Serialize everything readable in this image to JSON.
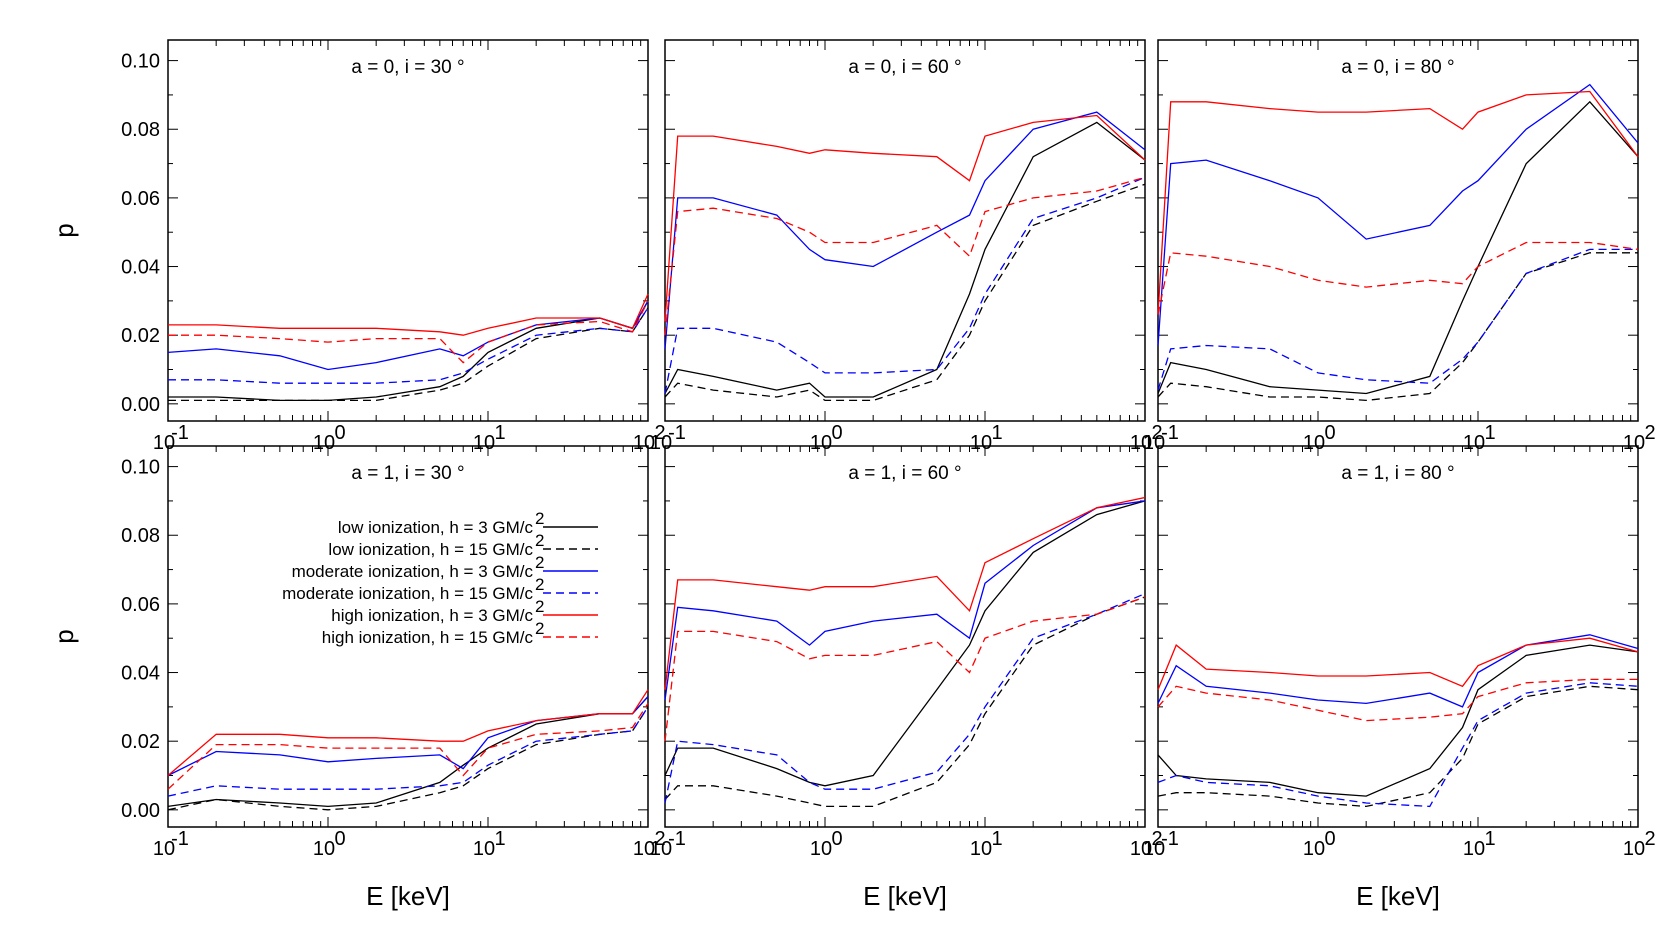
{
  "figure": {
    "ylabel": "p",
    "xlabel": "E [keV]"
  },
  "legend": {
    "entries": [
      {
        "label": "low ionization, h = 3 GM/c",
        "sup": "2",
        "color": "#000000",
        "dash": "solid"
      },
      {
        "label": "low ionization, h = 15 GM/c",
        "sup": "2",
        "color": "#000000",
        "dash": "dashed"
      },
      {
        "label": "moderate ionization, h = 3 GM/c",
        "sup": "2",
        "color": "#0000ff",
        "dash": "solid"
      },
      {
        "label": "moderate ionization, h = 15 GM/c",
        "sup": "2",
        "color": "#0000ff",
        "dash": "dashed"
      },
      {
        "label": "high ionization, h = 3 GM/c",
        "sup": "2",
        "color": "#ff0000",
        "dash": "solid"
      },
      {
        "label": "high ionization, h = 15 GM/c",
        "sup": "2",
        "color": "#ff0000",
        "dash": "dashed"
      }
    ]
  },
  "chart_data": [
    {
      "type": "line",
      "title": "a = 0, i = 30 °",
      "xscale": "log",
      "xlim": [
        0.1,
        100
      ],
      "ylim": [
        0,
        0.1
      ],
      "x": [
        0.1,
        0.2,
        0.5,
        1,
        2,
        5,
        7,
        10,
        20,
        50,
        80,
        100
      ],
      "series": [
        {
          "name": "low ionization, h = 3 GM/c2",
          "values": [
            0.002,
            0.002,
            0.001,
            0.001,
            0.002,
            0.005,
            0.008,
            0.015,
            0.022,
            0.025,
            0.022,
            0.03
          ]
        },
        {
          "name": "low ionization, h = 15 GM/c2",
          "values": [
            0.001,
            0.001,
            0.001,
            0.001,
            0.001,
            0.004,
            0.006,
            0.011,
            0.019,
            0.022,
            0.021,
            0.028
          ]
        },
        {
          "name": "moderate ionization, h = 3 GM/c2",
          "values": [
            0.015,
            0.016,
            0.014,
            0.01,
            0.012,
            0.016,
            0.014,
            0.018,
            0.023,
            0.025,
            0.022,
            0.03
          ]
        },
        {
          "name": "moderate ionization, h = 15 GM/c2",
          "values": [
            0.007,
            0.007,
            0.006,
            0.006,
            0.006,
            0.007,
            0.009,
            0.013,
            0.02,
            0.022,
            0.021,
            0.028
          ]
        },
        {
          "name": "high ionization, h = 3 GM/c2",
          "values": [
            0.023,
            0.023,
            0.022,
            0.022,
            0.022,
            0.021,
            0.02,
            0.022,
            0.025,
            0.025,
            0.022,
            0.032
          ]
        },
        {
          "name": "high ionization, h = 15 GM/c2",
          "values": [
            0.02,
            0.02,
            0.019,
            0.018,
            0.019,
            0.019,
            0.012,
            0.018,
            0.023,
            0.024,
            0.021,
            0.03
          ]
        }
      ]
    },
    {
      "type": "line",
      "title": "a = 0, i = 60 °",
      "xscale": "log",
      "xlim": [
        0.1,
        100
      ],
      "ylim": [
        0,
        0.1
      ],
      "x": [
        0.1,
        0.12,
        0.2,
        0.5,
        0.8,
        1,
        2,
        5,
        8,
        10,
        20,
        50,
        100
      ],
      "series": [
        {
          "name": "low ionization, h = 3 GM/c2",
          "values": [
            0.003,
            0.01,
            0.008,
            0.004,
            0.006,
            0.002,
            0.002,
            0.01,
            0.032,
            0.045,
            0.072,
            0.082,
            0.071
          ]
        },
        {
          "name": "low ionization, h = 15 GM/c2",
          "values": [
            0.002,
            0.006,
            0.004,
            0.002,
            0.004,
            0.001,
            0.001,
            0.007,
            0.02,
            0.03,
            0.052,
            0.059,
            0.064
          ]
        },
        {
          "name": "moderate ionization, h = 3 GM/c2",
          "values": [
            0.016,
            0.06,
            0.06,
            0.055,
            0.045,
            0.042,
            0.04,
            0.05,
            0.055,
            0.065,
            0.08,
            0.085,
            0.074
          ]
        },
        {
          "name": "moderate ionization, h = 15 GM/c2",
          "values": [
            0.003,
            0.022,
            0.022,
            0.018,
            0.012,
            0.009,
            0.009,
            0.01,
            0.022,
            0.032,
            0.054,
            0.06,
            0.066
          ]
        },
        {
          "name": "high ionization, h = 3 GM/c2",
          "values": [
            0.024,
            0.078,
            0.078,
            0.075,
            0.073,
            0.074,
            0.073,
            0.072,
            0.065,
            0.078,
            0.082,
            0.084,
            0.071
          ]
        },
        {
          "name": "high ionization, h = 15 GM/c2",
          "values": [
            0.02,
            0.056,
            0.057,
            0.054,
            0.05,
            0.047,
            0.047,
            0.052,
            0.043,
            0.056,
            0.06,
            0.062,
            0.066
          ]
        }
      ]
    },
    {
      "type": "line",
      "title": "a = 0, i = 80 °",
      "xscale": "log",
      "xlim": [
        0.1,
        100
      ],
      "ylim": [
        0,
        0.1
      ],
      "x": [
        0.1,
        0.12,
        0.2,
        0.5,
        1,
        2,
        5,
        8,
        10,
        20,
        50,
        100
      ],
      "series": [
        {
          "name": "low ionization, h = 3 GM/c2",
          "values": [
            0.003,
            0.012,
            0.01,
            0.005,
            0.004,
            0.003,
            0.008,
            0.03,
            0.04,
            0.07,
            0.088,
            0.072
          ]
        },
        {
          "name": "low ionization, h = 15 GM/c2",
          "values": [
            0.002,
            0.006,
            0.005,
            0.002,
            0.002,
            0.001,
            0.003,
            0.012,
            0.018,
            0.038,
            0.044,
            0.044
          ]
        },
        {
          "name": "moderate ionization, h = 3 GM/c2",
          "values": [
            0.017,
            0.07,
            0.071,
            0.065,
            0.06,
            0.048,
            0.052,
            0.062,
            0.065,
            0.08,
            0.093,
            0.076
          ]
        },
        {
          "name": "moderate ionization, h = 15 GM/c2",
          "values": [
            0.004,
            0.016,
            0.017,
            0.016,
            0.009,
            0.007,
            0.006,
            0.013,
            0.018,
            0.038,
            0.045,
            0.045
          ]
        },
        {
          "name": "high ionization, h = 3 GM/c2",
          "values": [
            0.026,
            0.088,
            0.088,
            0.086,
            0.085,
            0.085,
            0.086,
            0.08,
            0.085,
            0.09,
            0.091,
            0.072
          ]
        },
        {
          "name": "high ionization, h = 15 GM/c2",
          "values": [
            0.026,
            0.044,
            0.043,
            0.04,
            0.036,
            0.034,
            0.036,
            0.035,
            0.04,
            0.047,
            0.047,
            0.045
          ]
        }
      ]
    },
    {
      "type": "line",
      "title": "a = 1, i = 30 °",
      "xscale": "log",
      "xlim": [
        0.1,
        100
      ],
      "ylim": [
        0,
        0.1
      ],
      "x": [
        0.1,
        0.2,
        0.5,
        1,
        2,
        5,
        7,
        10,
        20,
        50,
        80,
        100
      ],
      "series": [
        {
          "name": "low ionization, h = 3 GM/c2",
          "values": [
            0.001,
            0.003,
            0.002,
            0.001,
            0.002,
            0.008,
            0.013,
            0.018,
            0.025,
            0.028,
            0.028,
            0.033
          ]
        },
        {
          "name": "low ionization, h = 15 GM/c2",
          "values": [
            0.0,
            0.003,
            0.001,
            0.0,
            0.001,
            0.005,
            0.007,
            0.012,
            0.019,
            0.022,
            0.023,
            0.03
          ]
        },
        {
          "name": "moderate ionization, h = 3 GM/c2",
          "values": [
            0.01,
            0.017,
            0.016,
            0.014,
            0.015,
            0.016,
            0.012,
            0.021,
            0.026,
            0.028,
            0.028,
            0.033
          ]
        },
        {
          "name": "moderate ionization, h = 15 GM/c2",
          "values": [
            0.004,
            0.007,
            0.006,
            0.006,
            0.006,
            0.007,
            0.008,
            0.013,
            0.02,
            0.022,
            0.023,
            0.03
          ]
        },
        {
          "name": "high ionization, h = 3 GM/c2",
          "values": [
            0.01,
            0.022,
            0.022,
            0.021,
            0.021,
            0.02,
            0.02,
            0.023,
            0.026,
            0.028,
            0.028,
            0.035
          ]
        },
        {
          "name": "high ionization, h = 15 GM/c2",
          "values": [
            0.006,
            0.019,
            0.019,
            0.018,
            0.018,
            0.018,
            0.01,
            0.018,
            0.022,
            0.023,
            0.024,
            0.031
          ]
        }
      ]
    },
    {
      "type": "line",
      "title": "a = 1, i = 60 °",
      "xscale": "log",
      "xlim": [
        0.1,
        100
      ],
      "ylim": [
        0,
        0.1
      ],
      "x": [
        0.1,
        0.12,
        0.2,
        0.5,
        0.8,
        1,
        2,
        5,
        8,
        10,
        20,
        50,
        100
      ],
      "series": [
        {
          "name": "low ionization, h = 3 GM/c2",
          "values": [
            0.01,
            0.018,
            0.018,
            0.012,
            0.008,
            0.007,
            0.01,
            0.035,
            0.048,
            0.058,
            0.075,
            0.086,
            0.09
          ]
        },
        {
          "name": "low ionization, h = 15 GM/c2",
          "values": [
            0.003,
            0.007,
            0.007,
            0.004,
            0.002,
            0.001,
            0.001,
            0.008,
            0.019,
            0.028,
            0.048,
            0.057,
            0.062
          ]
        },
        {
          "name": "moderate ionization, h = 3 GM/c2",
          "values": [
            0.032,
            0.059,
            0.058,
            0.055,
            0.048,
            0.052,
            0.055,
            0.057,
            0.05,
            0.066,
            0.077,
            0.088,
            0.09
          ]
        },
        {
          "name": "moderate ionization, h = 15 GM/c2",
          "values": [
            0.002,
            0.02,
            0.019,
            0.016,
            0.008,
            0.006,
            0.006,
            0.011,
            0.022,
            0.03,
            0.05,
            0.057,
            0.063
          ]
        },
        {
          "name": "high ionization, h = 3 GM/c2",
          "values": [
            0.035,
            0.067,
            0.067,
            0.065,
            0.064,
            0.065,
            0.065,
            0.068,
            0.058,
            0.072,
            0.079,
            0.088,
            0.091
          ]
        },
        {
          "name": "high ionization, h = 15 GM/c2",
          "values": [
            0.02,
            0.052,
            0.052,
            0.049,
            0.044,
            0.045,
            0.045,
            0.049,
            0.04,
            0.05,
            0.055,
            0.057,
            0.062
          ]
        }
      ]
    },
    {
      "type": "line",
      "title": "a = 1, i = 80 °",
      "xscale": "log",
      "xlim": [
        0.1,
        100
      ],
      "ylim": [
        0,
        0.1
      ],
      "x": [
        0.1,
        0.13,
        0.2,
        0.5,
        1,
        2,
        5,
        8,
        10,
        20,
        50,
        100
      ],
      "series": [
        {
          "name": "low ionization, h = 3 GM/c2",
          "values": [
            0.016,
            0.01,
            0.009,
            0.008,
            0.005,
            0.004,
            0.012,
            0.024,
            0.035,
            0.045,
            0.048,
            0.046
          ]
        },
        {
          "name": "low ionization, h = 15 GM/c2",
          "values": [
            0.004,
            0.005,
            0.005,
            0.004,
            0.002,
            0.001,
            0.005,
            0.015,
            0.025,
            0.033,
            0.036,
            0.035
          ]
        },
        {
          "name": "moderate ionization, h = 3 GM/c2",
          "values": [
            0.031,
            0.042,
            0.036,
            0.034,
            0.032,
            0.031,
            0.034,
            0.03,
            0.04,
            0.048,
            0.051,
            0.047
          ]
        },
        {
          "name": "moderate ionization, h = 15 GM/c2",
          "values": [
            0.008,
            0.01,
            0.008,
            0.007,
            0.004,
            0.002,
            0.001,
            0.018,
            0.026,
            0.034,
            0.037,
            0.036
          ]
        },
        {
          "name": "high ionization, h = 3 GM/c2",
          "values": [
            0.035,
            0.048,
            0.041,
            0.04,
            0.039,
            0.039,
            0.04,
            0.036,
            0.042,
            0.048,
            0.05,
            0.046
          ]
        },
        {
          "name": "high ionization, h = 15 GM/c2",
          "values": [
            0.03,
            0.036,
            0.034,
            0.032,
            0.029,
            0.026,
            0.027,
            0.028,
            0.033,
            0.037,
            0.038,
            0.038
          ]
        }
      ]
    }
  ]
}
